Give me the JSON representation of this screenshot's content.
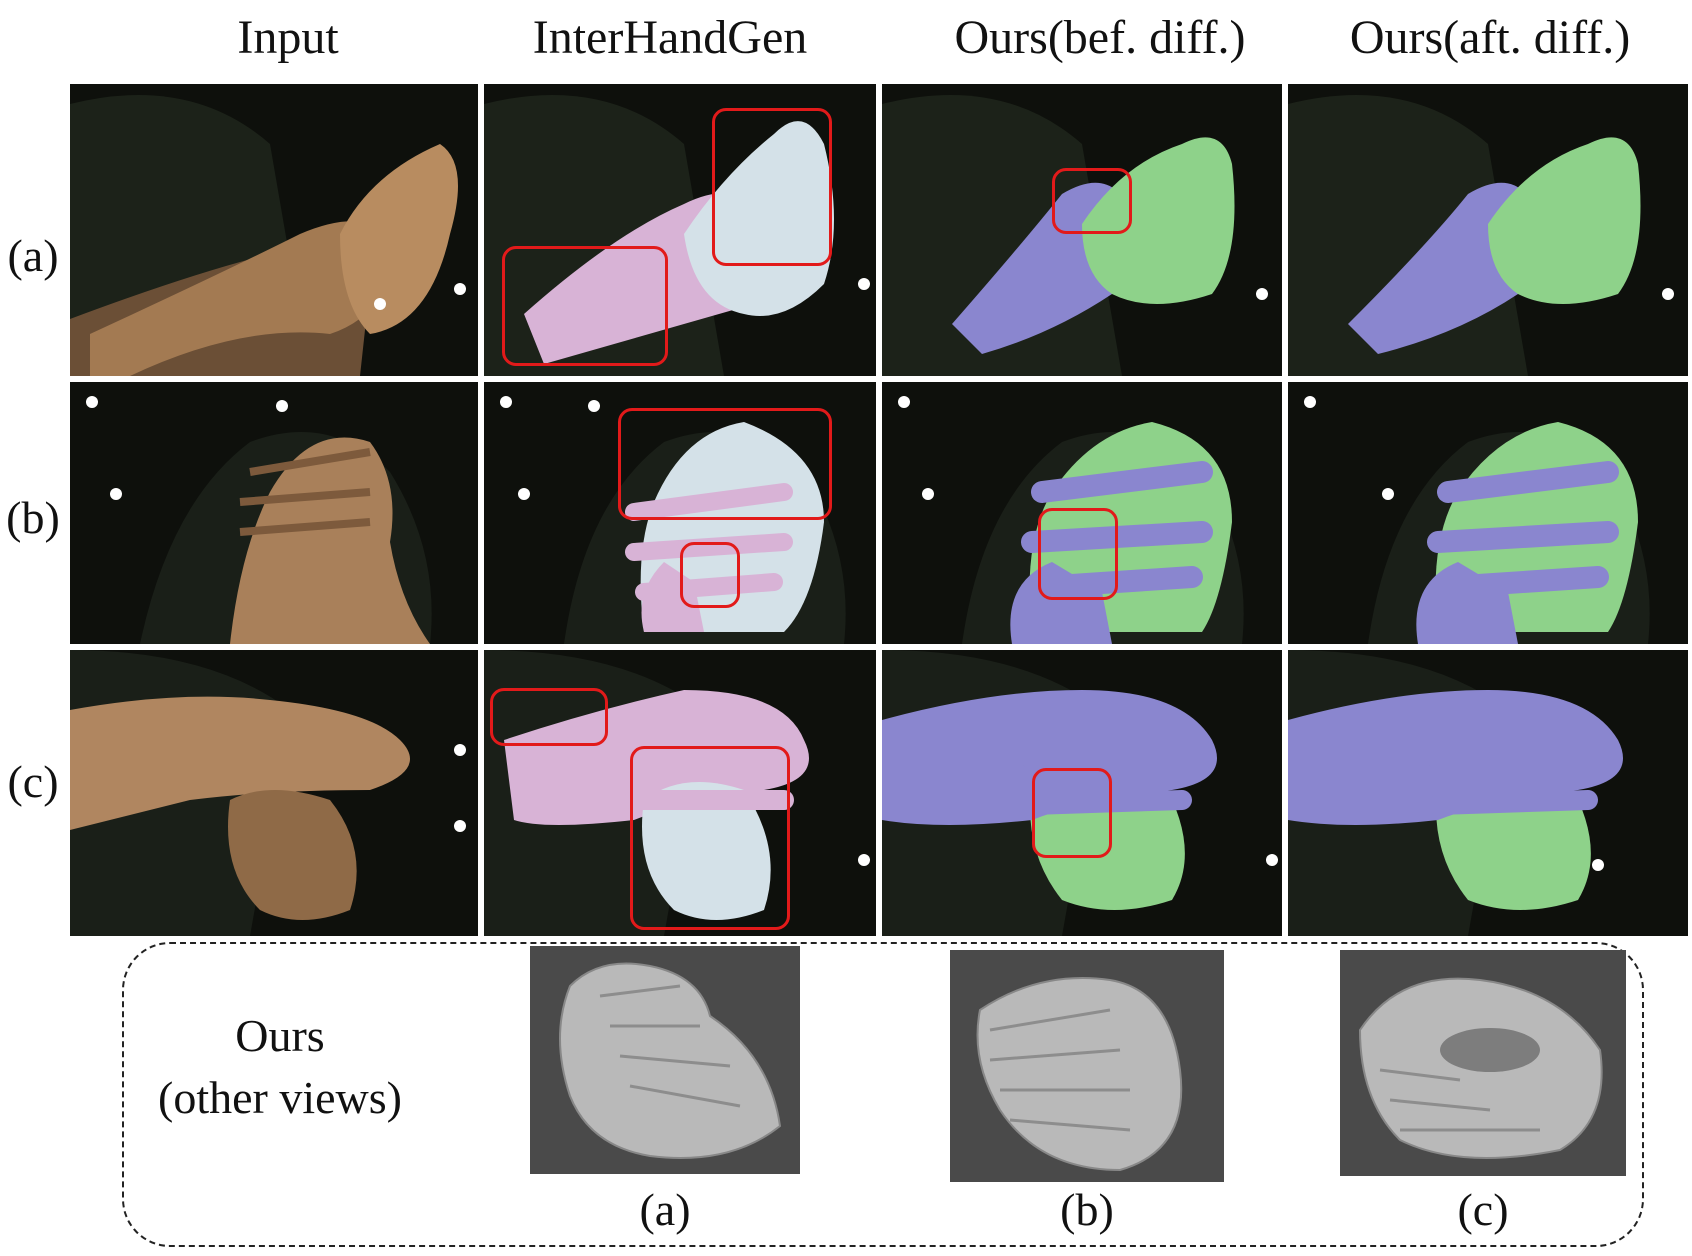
{
  "columns": [
    "Input",
    "InterHandGen",
    "Ours(bef. diff.)",
    "Ours(aft. diff.)"
  ],
  "rows": [
    "(a)",
    "(b)",
    "(c)"
  ],
  "bottom": {
    "label_line1": "Ours",
    "label_line2": "(other views)",
    "views": [
      "(a)",
      "(b)",
      "(c)"
    ]
  },
  "colors": {
    "interhandgen_left": "#d8b3d6",
    "interhandgen_right": "#d4e1e8",
    "ours_left": "#8a86cf",
    "ours_right": "#8ed28a",
    "skin": "#b58a5e",
    "highlight": "#e21a1a",
    "mesh": "#b9b9b9"
  }
}
